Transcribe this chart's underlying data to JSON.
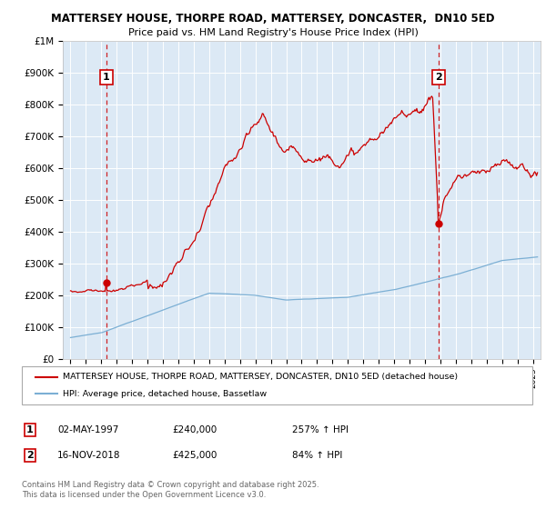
{
  "title_line1": "MATTERSEY HOUSE, THORPE ROAD, MATTERSEY, DONCASTER,  DN10 5ED",
  "title_line2": "Price paid vs. HM Land Registry's House Price Index (HPI)",
  "fig_bg_color": "#ffffff",
  "plot_bg_color": "#dce9f5",
  "red_line_color": "#cc0000",
  "blue_line_color": "#7bafd4",
  "sale1_x": 1997.33,
  "sale1_y": 240000,
  "sale2_x": 2018.88,
  "sale2_y": 425000,
  "ylim": [
    0,
    1000000
  ],
  "xlim": [
    1994.5,
    2025.5
  ],
  "yticks": [
    0,
    100000,
    200000,
    300000,
    400000,
    500000,
    600000,
    700000,
    800000,
    900000,
    1000000
  ],
  "ytick_labels": [
    "£0",
    "£100K",
    "£200K",
    "£300K",
    "£400K",
    "£500K",
    "£600K",
    "£700K",
    "£800K",
    "£900K",
    "£1M"
  ],
  "legend_entry1": "MATTERSEY HOUSE, THORPE ROAD, MATTERSEY, DONCASTER, DN10 5ED (detached house)",
  "legend_entry2": "HPI: Average price, detached house, Bassetlaw",
  "ann1_date": "02-MAY-1997",
  "ann1_price": "£240,000",
  "ann1_hpi": "257% ↑ HPI",
  "ann2_date": "16-NOV-2018",
  "ann2_price": "£425,000",
  "ann2_hpi": "84% ↑ HPI",
  "footer": "Contains HM Land Registry data © Crown copyright and database right 2025.\nThis data is licensed under the Open Government Licence v3.0."
}
